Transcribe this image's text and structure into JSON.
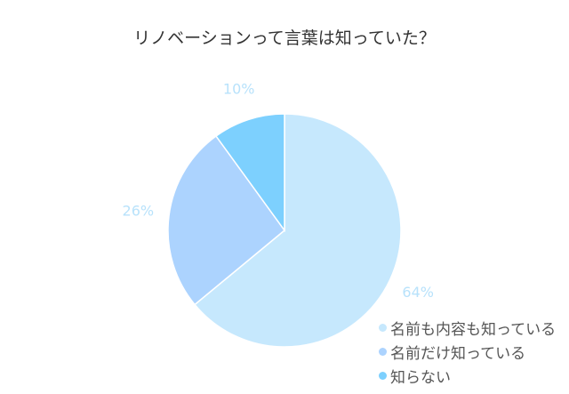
{
  "chart_data": {
    "type": "pie",
    "title": "リノベーションって言葉は知っていた？",
    "categories": [
      "名前も内容も知っている",
      "名前だけ知っている",
      "知らない"
    ],
    "values": [
      64,
      26,
      10
    ],
    "data_labels": [
      "64%",
      "26%",
      "10%"
    ],
    "colors": [
      "#c6e8fd",
      "#acd3fe",
      "#7dd0fe"
    ],
    "label_color": "#b8e2fb",
    "legend_position": "bottom-right"
  }
}
